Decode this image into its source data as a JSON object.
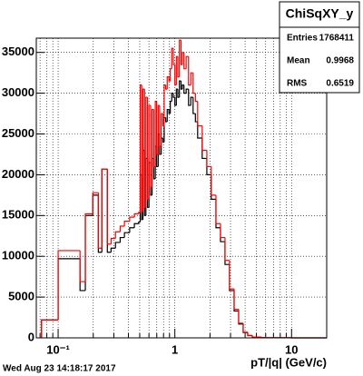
{
  "chart_data": {
    "type": "histogram",
    "stats": {
      "title": "ChiSqXY_y",
      "rows": [
        {
          "label": "Entries",
          "value": 1768411
        },
        {
          "label": "Mean",
          "value": 0.9968
        },
        {
          "label": "RMS",
          "value": 0.6519
        }
      ]
    },
    "x_label": "pT/|q| (GeV/c)",
    "footer": "Wed Aug 23 14:18:17 2017",
    "log_x": true,
    "grid": true,
    "xlim": [
      0.065,
      20
    ],
    "ylim": [
      0,
      36750
    ],
    "xticks": [
      {
        "value": 0.1,
        "label": "10⁻¹"
      },
      1,
      10
    ],
    "xminorticks": [
      0.07,
      0.08,
      0.09,
      0.2,
      0.3,
      0.4,
      0.5,
      0.6,
      0.7,
      0.8,
      0.9,
      2,
      3,
      4,
      5,
      6,
      7,
      8,
      9,
      20
    ],
    "yticks": [
      0,
      5000,
      10000,
      15000,
      20000,
      25000,
      30000,
      35000
    ],
    "bins": [
      0.072,
      0.1,
      0.154,
      0.171,
      0.198,
      0.221,
      0.237,
      0.264,
      0.284,
      0.31,
      0.34,
      0.37,
      0.41,
      0.45,
      0.49,
      0.505,
      0.52,
      0.533,
      0.55,
      0.565,
      0.583,
      0.6,
      0.62,
      0.638,
      0.66,
      0.68,
      0.698,
      0.72,
      0.74,
      0.764,
      0.79,
      0.81,
      0.835,
      0.86,
      0.89,
      0.914,
      0.94,
      0.97,
      1.0,
      1.03,
      1.06,
      1.094,
      1.13,
      1.16,
      1.197,
      1.25,
      1.31,
      1.37,
      1.433,
      1.5,
      1.568,
      1.715,
      1.88,
      2.05,
      2.25,
      2.46,
      2.69,
      2.94,
      3.22,
      3.52,
      3.85,
      4.21,
      4.61,
      5.52,
      6.04,
      10,
      20
    ],
    "series": [
      {
        "color": "#000000",
        "values": [
          2200,
          9700,
          5800,
          15000,
          17500,
          10500,
          20700,
          10500,
          11000,
          11700,
          12300,
          12900,
          13500,
          14000,
          14200,
          20000,
          14500,
          23000,
          15000,
          22000,
          16000,
          21500,
          17500,
          22000,
          19500,
          23500,
          21000,
          25000,
          22500,
          24500,
          24000,
          27000,
          26500,
          28000,
          27500,
          29000,
          30000,
          29500,
          28500,
          30500,
          29500,
          31500,
          30500,
          31000,
          30000,
          30500,
          28500,
          29500,
          27500,
          26500,
          24500,
          22000,
          20000,
          17000,
          13500,
          11800,
          9000,
          5800,
          3300,
          1700,
          650,
          280,
          90,
          40,
          15,
          0
        ]
      },
      {
        "color": "#ff0000",
        "values": [
          2200,
          10700,
          6900,
          15200,
          17800,
          11000,
          20700,
          11500,
          12200,
          13000,
          13700,
          14300,
          14800,
          15200,
          15400,
          31000,
          15500,
          30500,
          16000,
          29500,
          17000,
          28500,
          18500,
          28000,
          21000,
          29000,
          22500,
          28500,
          23500,
          27500,
          26000,
          31000,
          30500,
          32000,
          31500,
          33000,
          35500,
          33500,
          31000,
          34500,
          32000,
          36500,
          33500,
          35000,
          33000,
          34500,
          31000,
          32500,
          30000,
          29000,
          26000,
          23000,
          21000,
          17500,
          14000,
          12300,
          9500,
          6000,
          3500,
          1800,
          700,
          300,
          100,
          50,
          20,
          0
        ]
      }
    ]
  }
}
